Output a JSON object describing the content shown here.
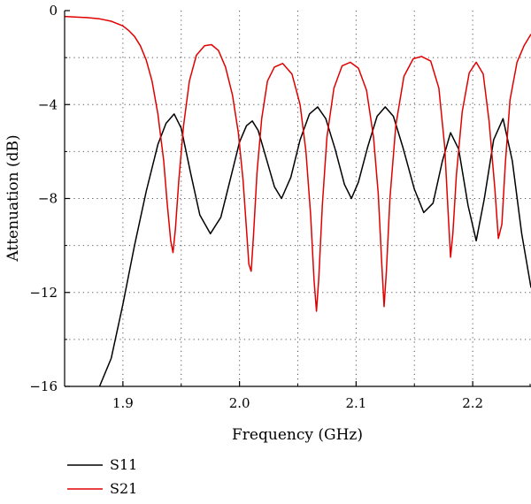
{
  "chart_data": {
    "type": "line",
    "title": "",
    "xlabel": "Frequency (GHz)",
    "ylabel": "Attenuation (dB)",
    "xlim": [
      1.85,
      2.25
    ],
    "ylim": [
      -16,
      0
    ],
    "x_ticks": [
      1.9,
      2.0,
      2.1,
      2.2
    ],
    "x_tick_labels": [
      "1.9",
      "2.0",
      "2.1",
      "2.2"
    ],
    "y_ticks": [
      0,
      -4,
      -8,
      -12,
      -16
    ],
    "y_tick_labels": [
      "0",
      "−4",
      "−8",
      "−12",
      "−16"
    ],
    "grid": "dotted",
    "legend_position": "bottom-left",
    "series": [
      {
        "name": "S11",
        "color": "#000000",
        "x": [
          1.88,
          1.89,
          1.9,
          1.91,
          1.92,
          1.93,
          1.937,
          1.944,
          1.95,
          1.958,
          1.966,
          1.975,
          1.984,
          1.992,
          2.0,
          2.006,
          2.011,
          2.016,
          2.023,
          2.03,
          2.036,
          2.044,
          2.052,
          2.06,
          2.067,
          2.074,
          2.082,
          2.09,
          2.096,
          2.102,
          2.11,
          2.118,
          2.125,
          2.132,
          2.14,
          2.15,
          2.158,
          2.166,
          2.174,
          2.181,
          2.188,
          2.196,
          2.203,
          2.21,
          2.218,
          2.226,
          2.234,
          2.242,
          2.25
        ],
        "y": [
          -16.0,
          -14.8,
          -12.5,
          -10.0,
          -7.7,
          -5.7,
          -4.8,
          -4.4,
          -5.0,
          -6.9,
          -8.7,
          -9.5,
          -8.8,
          -7.2,
          -5.6,
          -4.9,
          -4.7,
          -5.1,
          -6.3,
          -7.5,
          -8.0,
          -7.1,
          -5.5,
          -4.4,
          -4.1,
          -4.6,
          -5.9,
          -7.4,
          -8.0,
          -7.3,
          -5.8,
          -4.5,
          -4.1,
          -4.5,
          -5.8,
          -7.6,
          -8.6,
          -8.2,
          -6.4,
          -5.2,
          -5.9,
          -8.3,
          -9.8,
          -8.0,
          -5.5,
          -4.6,
          -6.4,
          -9.5,
          -11.8
        ]
      },
      {
        "name": "S21",
        "color": "#e10000",
        "x": [
          1.85,
          1.87,
          1.88,
          1.89,
          1.9,
          1.905,
          1.91,
          1.915,
          1.92,
          1.925,
          1.93,
          1.935,
          1.938,
          1.941,
          1.943,
          1.945,
          1.948,
          1.952,
          1.957,
          1.963,
          1.97,
          1.976,
          1.982,
          1.988,
          1.994,
          1.999,
          2.003,
          2.006,
          2.008,
          2.01,
          2.012,
          2.015,
          2.019,
          2.024,
          2.03,
          2.037,
          2.045,
          2.052,
          2.057,
          2.061,
          2.064,
          2.066,
          2.068,
          2.071,
          2.075,
          2.081,
          2.088,
          2.095,
          2.102,
          2.109,
          2.115,
          2.119,
          2.122,
          2.124,
          2.126,
          2.129,
          2.134,
          2.141,
          2.149,
          2.156,
          2.164,
          2.171,
          2.176,
          2.179,
          2.181,
          2.183,
          2.186,
          2.191,
          2.197,
          2.203,
          2.209,
          2.214,
          2.219,
          2.222,
          2.225,
          2.228,
          2.232,
          2.238,
          2.244,
          2.25
        ],
        "y": [
          -0.25,
          -0.3,
          -0.35,
          -0.45,
          -0.65,
          -0.85,
          -1.1,
          -1.5,
          -2.1,
          -3.0,
          -4.4,
          -6.4,
          -8.2,
          -9.8,
          -10.3,
          -9.3,
          -7.2,
          -4.9,
          -3.0,
          -1.9,
          -1.5,
          -1.45,
          -1.7,
          -2.4,
          -3.6,
          -5.2,
          -7.2,
          -9.3,
          -10.8,
          -11.1,
          -9.6,
          -6.9,
          -4.6,
          -3.0,
          -2.4,
          -2.25,
          -2.7,
          -4.0,
          -6.0,
          -8.7,
          -11.5,
          -12.8,
          -11.4,
          -8.3,
          -5.4,
          -3.3,
          -2.35,
          -2.2,
          -2.45,
          -3.4,
          -5.4,
          -7.8,
          -10.8,
          -12.6,
          -11.1,
          -8.0,
          -4.9,
          -2.8,
          -2.05,
          -1.95,
          -2.15,
          -3.3,
          -5.8,
          -8.7,
          -10.5,
          -9.5,
          -7.0,
          -4.3,
          -2.65,
          -2.2,
          -2.7,
          -4.7,
          -7.6,
          -9.7,
          -9.1,
          -6.5,
          -3.8,
          -2.2,
          -1.5,
          -1.0
        ]
      }
    ]
  }
}
